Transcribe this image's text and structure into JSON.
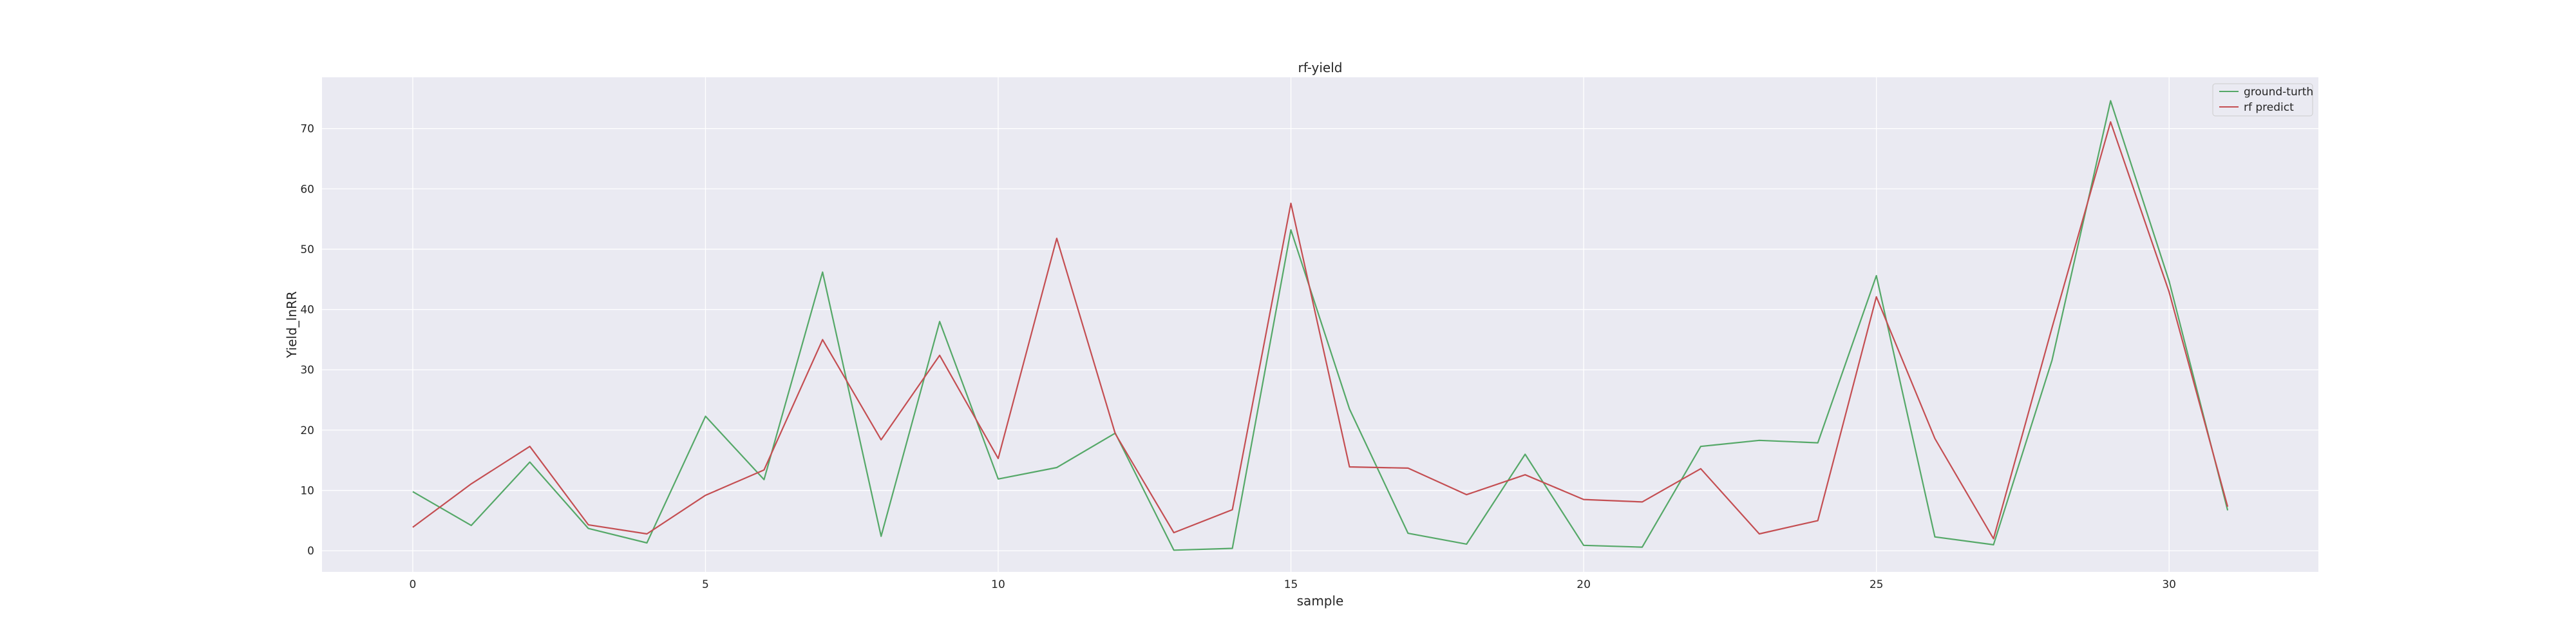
{
  "chart_data": {
    "type": "line",
    "title": "rf-yield",
    "xlabel": "sample",
    "ylabel": "Yield_lnRR",
    "xlim": [
      -1.55,
      32.55
    ],
    "ylim": [
      -3.5,
      78.5
    ],
    "xticks": [
      0,
      5,
      10,
      15,
      20,
      25,
      30
    ],
    "yticks": [
      0,
      10,
      20,
      30,
      40,
      50,
      60,
      70
    ],
    "grid": true,
    "legend_position": "top-right",
    "background": "#EAEAF2",
    "x": [
      0,
      1,
      2,
      3,
      4,
      5,
      6,
      7,
      8,
      9,
      10,
      11,
      12,
      13,
      14,
      15,
      16,
      17,
      18,
      19,
      20,
      21,
      22,
      23,
      24,
      25,
      26,
      27,
      28,
      29,
      30,
      31
    ],
    "series": [
      {
        "name": "ground-turth",
        "color": "#55A868",
        "values": [
          9.8,
          4.2,
          14.7,
          3.7,
          1.3,
          22.3,
          11.8,
          46.2,
          2.4,
          38.0,
          11.9,
          13.8,
          19.5,
          0.1,
          0.4,
          53.2,
          23.5,
          2.9,
          1.1,
          16.0,
          0.9,
          0.6,
          17.3,
          18.3,
          17.9,
          45.6,
          2.3,
          1.0,
          31.6,
          74.6,
          44.7,
          6.7
        ]
      },
      {
        "name": "rf predict",
        "color": "#C44E52",
        "values": [
          3.9,
          11.1,
          17.3,
          4.3,
          2.8,
          9.2,
          13.4,
          35.0,
          18.4,
          32.4,
          15.3,
          51.8,
          19.4,
          3.0,
          6.8,
          57.6,
          13.9,
          13.7,
          9.3,
          12.6,
          8.5,
          8.1,
          13.6,
          2.8,
          5.0,
          42.1,
          18.6,
          2.0,
          37.0,
          71.1,
          42.9,
          7.3
        ]
      }
    ]
  }
}
